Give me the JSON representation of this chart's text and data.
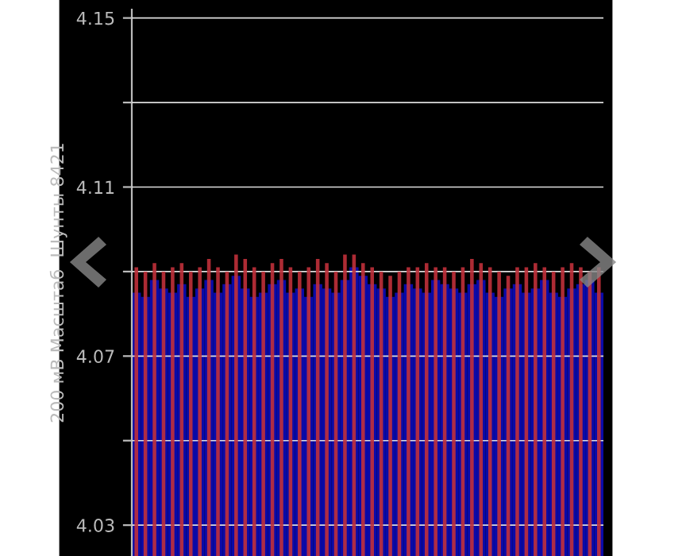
{
  "chart_data": {
    "type": "bar",
    "ylabel": "200 мВ Масштаб  Шунты 8421",
    "categories": [
      null,
      null,
      null,
      null,
      null,
      null,
      null,
      null,
      null,
      null,
      null,
      null,
      null,
      null,
      null,
      null,
      null,
      null,
      null,
      null,
      null,
      null,
      null,
      null,
      null,
      null,
      null,
      null,
      null,
      null,
      null,
      null,
      null,
      null,
      null,
      null,
      null,
      null,
      null,
      null,
      null,
      null,
      null,
      null,
      null,
      null,
      null,
      null,
      null,
      null,
      null,
      null
    ],
    "series": [
      {
        "color": "#0a0aa8",
        "values": [
          4.085,
          4.084,
          4.088,
          4.086,
          4.085,
          4.087,
          4.084,
          4.086,
          4.088,
          4.085,
          4.087,
          4.089,
          4.086,
          4.084,
          4.085,
          4.087,
          4.088,
          4.085,
          4.086,
          4.084,
          4.087,
          4.086,
          4.085,
          4.088,
          4.091,
          4.089,
          4.087,
          4.086,
          4.084,
          4.085,
          4.087,
          4.086,
          4.085,
          4.088,
          4.087,
          4.086,
          4.085,
          4.087,
          4.088,
          4.085,
          4.084,
          4.086,
          4.087,
          4.085,
          4.086,
          4.088,
          4.085,
          4.084,
          4.086,
          4.087,
          4.088,
          4.085
        ]
      },
      {
        "color": "#c0303a",
        "values": [
          4.091,
          4.09,
          4.092,
          4.09,
          4.091,
          4.092,
          4.09,
          4.091,
          4.093,
          4.091,
          4.09,
          4.094,
          4.093,
          4.091,
          4.09,
          4.092,
          4.093,
          4.091,
          4.09,
          4.091,
          4.093,
          4.092,
          4.09,
          4.094,
          4.094,
          4.092,
          4.091,
          4.09,
          4.089,
          4.09,
          4.091,
          4.091,
          4.092,
          4.091,
          4.091,
          4.09,
          4.091,
          4.093,
          4.092,
          4.091,
          4.09,
          4.089,
          4.091,
          4.091,
          4.092,
          4.091,
          4.09,
          4.091,
          4.092,
          4.091,
          4.09,
          4.091
        ]
      }
    ],
    "ylim": [
      4.0227,
      4.152
    ],
    "yticks": [
      4.03,
      {
        "value": 4.05,
        "label": null
      },
      4.07,
      {
        "value": 4.09,
        "label": null
      },
      4.11,
      {
        "value": 4.13,
        "label": null
      },
      4.15
    ],
    "grid": "y"
  }
}
